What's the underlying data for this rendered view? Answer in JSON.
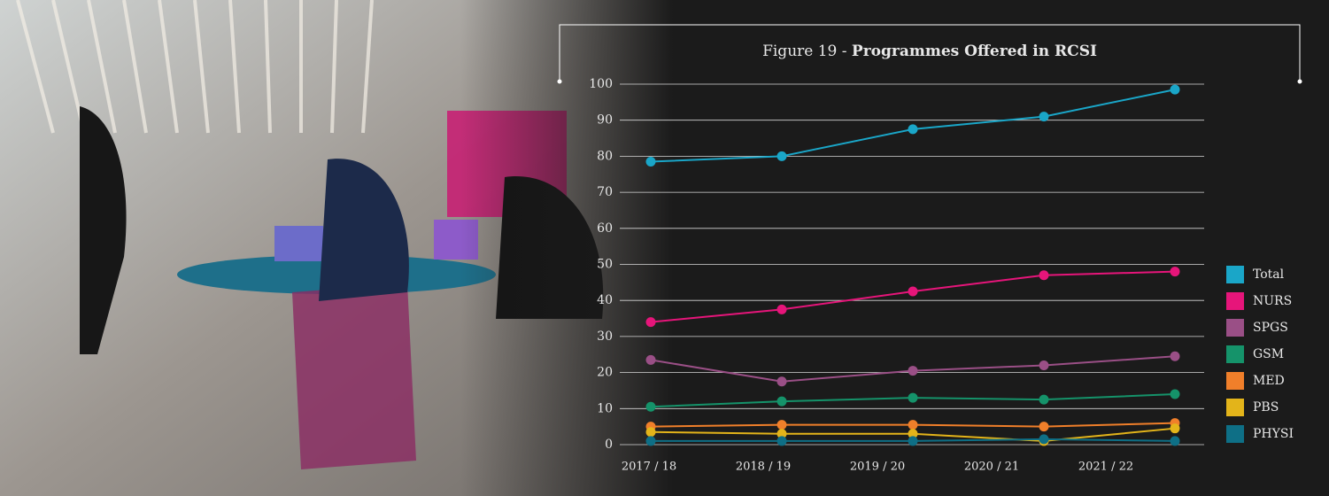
{
  "chart_data": {
    "type": "line",
    "title_parts": [
      "Figure 19 -",
      "Programmes Offered in RCSI"
    ],
    "categories": [
      "2017 / 18",
      "2018 / 19",
      "2019 / 20",
      "2020 / 21",
      "2021 / 22"
    ],
    "series": [
      {
        "name": "Total",
        "color": "#1aa6c8",
        "values": [
          78.5,
          80,
          87.5,
          91,
          98.5
        ]
      },
      {
        "name": "NURS",
        "color": "#e6157a",
        "values": [
          34,
          37.5,
          42.5,
          47,
          48
        ]
      },
      {
        "name": "SPGS",
        "color": "#9a4f86",
        "values": [
          23.5,
          17.5,
          20.5,
          22,
          24.5
        ]
      },
      {
        "name": "GSM",
        "color": "#15936a",
        "values": [
          10.5,
          12,
          13,
          12.5,
          14
        ]
      },
      {
        "name": "MED",
        "color": "#f07f2a",
        "values": [
          5,
          5.5,
          5.5,
          5,
          6
        ]
      },
      {
        "name": "PBS",
        "color": "#e3b41a",
        "values": [
          3.5,
          3,
          3,
          1,
          4.5
        ]
      },
      {
        "name": "PHYSI",
        "color": "#0e6f86",
        "values": [
          1,
          1,
          1,
          1.5,
          1
        ]
      }
    ],
    "ylim": [
      0,
      100
    ],
    "yticks": [
      0,
      10,
      20,
      30,
      40,
      50,
      60,
      70,
      80,
      90,
      100
    ],
    "grid": true,
    "legend": "right"
  }
}
